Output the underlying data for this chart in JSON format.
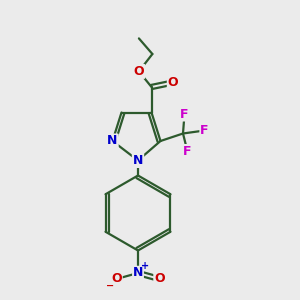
{
  "bg_color": "#ebebeb",
  "bond_color": "#2d5a2d",
  "bond_width": 1.6,
  "N_color": "#0000cc",
  "O_color": "#cc0000",
  "F_color": "#cc00cc",
  "figsize": [
    3.0,
    3.0
  ],
  "dpi": 100,
  "xlim": [
    0,
    10
  ],
  "ylim": [
    0,
    10
  ]
}
